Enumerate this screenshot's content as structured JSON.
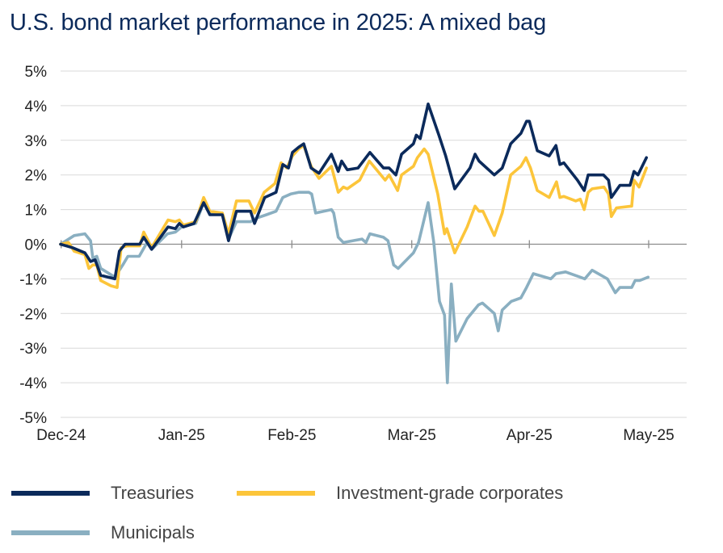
{
  "chart_data": {
    "type": "line",
    "title": "U.S. bond market performance in 2025: A mixed bag",
    "xlabel": "",
    "ylabel": "",
    "x_units": "approx. trading days since start of Dec-24",
    "xlim": [
      0,
      110
    ],
    "ylim": [
      -5,
      5
    ],
    "grid": true,
    "legend_position": "bottom",
    "x_ticks": [
      {
        "label": "Dec-24",
        "x": 0.1
      },
      {
        "label": "Jan-25",
        "x": 21.4
      },
      {
        "label": "Feb-25",
        "x": 40.9
      },
      {
        "label": "Mar-25",
        "x": 62.1
      },
      {
        "label": "Apr-25",
        "x": 82.9
      },
      {
        "label": "May-25",
        "x": 104
      }
    ],
    "y_ticks": [
      {
        "label": "5%",
        "y": 5
      },
      {
        "label": "4%",
        "y": 4
      },
      {
        "label": "3%",
        "y": 3
      },
      {
        "label": "2%",
        "y": 2
      },
      {
        "label": "1%",
        "y": 1
      },
      {
        "label": "0%",
        "y": 0
      },
      {
        "label": "-1%",
        "y": -1
      },
      {
        "label": "-2%",
        "y": -2
      },
      {
        "label": "-3%",
        "y": -3
      },
      {
        "label": "-4%",
        "y": -4
      },
      {
        "label": "-5%",
        "y": -5
      }
    ],
    "series": [
      {
        "name": "Treasuries",
        "color": "#0b2a5b",
        "points": [
          [
            0,
            0
          ],
          [
            2.1,
            -0.1
          ],
          [
            4.3,
            -0.25
          ],
          [
            5.3,
            -0.5
          ],
          [
            6.1,
            -0.45
          ],
          [
            7.1,
            -0.9
          ],
          [
            9.6,
            -1.0
          ],
          [
            10.4,
            -0.2
          ],
          [
            11.4,
            0
          ],
          [
            14,
            0
          ],
          [
            14.7,
            0.2
          ],
          [
            16.1,
            -0.15
          ],
          [
            19,
            0.5
          ],
          [
            20.3,
            0.45
          ],
          [
            21,
            0.6
          ],
          [
            21.7,
            0.5
          ],
          [
            23.6,
            0.6
          ],
          [
            25.3,
            1.2
          ],
          [
            26.4,
            0.85
          ],
          [
            28.6,
            0.85
          ],
          [
            29.7,
            0.1
          ],
          [
            31.1,
            0.95
          ],
          [
            33.6,
            0.95
          ],
          [
            34.3,
            0.6
          ],
          [
            36.1,
            1.35
          ],
          [
            38.1,
            1.5
          ],
          [
            39.3,
            2.3
          ],
          [
            40.3,
            2.2
          ],
          [
            41,
            2.65
          ],
          [
            42.1,
            2.8
          ],
          [
            43,
            2.9
          ],
          [
            44.3,
            2.2
          ],
          [
            45.7,
            2.05
          ],
          [
            47.9,
            2.6
          ],
          [
            49.1,
            2.1
          ],
          [
            49.7,
            2.4
          ],
          [
            50.7,
            2.15
          ],
          [
            52.6,
            2.2
          ],
          [
            54.7,
            2.65
          ],
          [
            57.1,
            2.2
          ],
          [
            58.1,
            2.2
          ],
          [
            59.3,
            2.0
          ],
          [
            60.3,
            2.6
          ],
          [
            62.4,
            2.9
          ],
          [
            62.9,
            3.15
          ],
          [
            63.6,
            3.05
          ],
          [
            65,
            4.05
          ],
          [
            66.9,
            3.15
          ],
          [
            68.1,
            2.55
          ],
          [
            69.7,
            1.6
          ],
          [
            72.4,
            2.2
          ],
          [
            73.3,
            2.6
          ],
          [
            74,
            2.4
          ],
          [
            76.7,
            2.0
          ],
          [
            78.1,
            2.2
          ],
          [
            79.6,
            2.9
          ],
          [
            81.4,
            3.2
          ],
          [
            82.4,
            3.55
          ],
          [
            82.9,
            3.55
          ],
          [
            84.3,
            2.7
          ],
          [
            86.4,
            2.55
          ],
          [
            87.6,
            2.85
          ],
          [
            88.3,
            2.3
          ],
          [
            89,
            2.35
          ],
          [
            91.4,
            1.85
          ],
          [
            92.6,
            1.55
          ],
          [
            93.3,
            2.0
          ],
          [
            96,
            2.0
          ],
          [
            96.9,
            1.85
          ],
          [
            97.4,
            1.35
          ],
          [
            98.9,
            1.7
          ],
          [
            100.7,
            1.7
          ],
          [
            101.4,
            2.1
          ],
          [
            102.1,
            2.0
          ],
          [
            103.6,
            2.5
          ]
        ]
      },
      {
        "name": "Investment-grade corporates",
        "color": "#fcc53a",
        "points": [
          [
            0,
            0
          ],
          [
            1.4,
            0.05
          ],
          [
            2.4,
            -0.2
          ],
          [
            4.3,
            -0.3
          ],
          [
            5,
            -0.7
          ],
          [
            5.7,
            -0.6
          ],
          [
            6.4,
            -0.6
          ],
          [
            7.1,
            -1.05
          ],
          [
            8.9,
            -1.2
          ],
          [
            10,
            -1.25
          ],
          [
            10.7,
            -0.1
          ],
          [
            11.7,
            -0.05
          ],
          [
            14,
            -0.05
          ],
          [
            14.7,
            0.35
          ],
          [
            16.1,
            -0.1
          ],
          [
            19,
            0.7
          ],
          [
            20.3,
            0.65
          ],
          [
            21,
            0.7
          ],
          [
            21.7,
            0.55
          ],
          [
            23.9,
            0.65
          ],
          [
            25.3,
            1.35
          ],
          [
            26.4,
            0.95
          ],
          [
            28.6,
            0.9
          ],
          [
            29.7,
            0.3
          ],
          [
            31.1,
            1.25
          ],
          [
            33.3,
            1.25
          ],
          [
            34.3,
            0.9
          ],
          [
            36,
            1.5
          ],
          [
            37.9,
            1.75
          ],
          [
            39,
            2.35
          ],
          [
            40,
            2.2
          ],
          [
            41,
            2.55
          ],
          [
            42.1,
            2.75
          ],
          [
            43,
            2.85
          ],
          [
            44.3,
            2.25
          ],
          [
            45.7,
            1.9
          ],
          [
            47.9,
            2.25
          ],
          [
            49.1,
            1.5
          ],
          [
            50,
            1.65
          ],
          [
            50.7,
            1.6
          ],
          [
            52.9,
            1.85
          ],
          [
            54.6,
            2.4
          ],
          [
            57.4,
            1.85
          ],
          [
            58.1,
            2.0
          ],
          [
            59.6,
            1.55
          ],
          [
            60.3,
            2.0
          ],
          [
            62.4,
            2.25
          ],
          [
            63.1,
            2.5
          ],
          [
            64.3,
            2.75
          ],
          [
            65,
            2.6
          ],
          [
            66.7,
            1.45
          ],
          [
            67.9,
            0.3
          ],
          [
            68.3,
            0.45
          ],
          [
            69.7,
            -0.25
          ],
          [
            71.9,
            0.5
          ],
          [
            73.3,
            1.1
          ],
          [
            74,
            0.95
          ],
          [
            74.7,
            0.95
          ],
          [
            76.7,
            0.25
          ],
          [
            78.1,
            0.9
          ],
          [
            79.6,
            2.0
          ],
          [
            81.4,
            2.25
          ],
          [
            82.3,
            2.5
          ],
          [
            83.1,
            2.2
          ],
          [
            84.3,
            1.55
          ],
          [
            86.4,
            1.35
          ],
          [
            87.7,
            1.8
          ],
          [
            88.3,
            1.35
          ],
          [
            89,
            1.38
          ],
          [
            91.1,
            1.25
          ],
          [
            91.9,
            1.3
          ],
          [
            92.6,
            1.0
          ],
          [
            93.3,
            1.5
          ],
          [
            94,
            1.6
          ],
          [
            96.1,
            1.65
          ],
          [
            96.9,
            1.45
          ],
          [
            97.4,
            0.8
          ],
          [
            98.3,
            1.05
          ],
          [
            101,
            1.1
          ],
          [
            101.4,
            1.85
          ],
          [
            102.3,
            1.65
          ],
          [
            103.6,
            2.2
          ]
        ]
      },
      {
        "name": "Municipals",
        "color": "#8aafc1",
        "points": [
          [
            0,
            0
          ],
          [
            2.4,
            0.25
          ],
          [
            4.3,
            0.3
          ],
          [
            5.3,
            0.1
          ],
          [
            5.7,
            -0.4
          ],
          [
            6.4,
            -0.35
          ],
          [
            7.1,
            -0.7
          ],
          [
            9.6,
            -0.95
          ],
          [
            11,
            -0.6
          ],
          [
            11.9,
            -0.35
          ],
          [
            13.9,
            -0.35
          ],
          [
            15.3,
            0.05
          ],
          [
            16.4,
            -0.1
          ],
          [
            18.9,
            0.3
          ],
          [
            20.3,
            0.35
          ],
          [
            21.4,
            0.5
          ],
          [
            23.9,
            0.6
          ],
          [
            25.3,
            1.2
          ],
          [
            26.4,
            0.9
          ],
          [
            28.6,
            0.9
          ],
          [
            29.7,
            0.15
          ],
          [
            31.1,
            0.65
          ],
          [
            33.6,
            0.65
          ],
          [
            34.6,
            0.75
          ],
          [
            36.4,
            0.85
          ],
          [
            38.1,
            0.95
          ],
          [
            39.3,
            1.35
          ],
          [
            40.7,
            1.45
          ],
          [
            42.1,
            1.5
          ],
          [
            43.9,
            1.5
          ],
          [
            44.4,
            1.45
          ],
          [
            45.1,
            0.9
          ],
          [
            47.9,
            1.0
          ],
          [
            48.3,
            0.9
          ],
          [
            49.1,
            0.2
          ],
          [
            50,
            0.05
          ],
          [
            53.3,
            0.15
          ],
          [
            54,
            0.05
          ],
          [
            54.7,
            0.3
          ],
          [
            57.1,
            0.2
          ],
          [
            57.9,
            0.1
          ],
          [
            58.9,
            -0.6
          ],
          [
            59.7,
            -0.7
          ],
          [
            62.4,
            -0.25
          ],
          [
            63.3,
            0.05
          ],
          [
            65,
            1.2
          ],
          [
            66,
            0.05
          ],
          [
            67,
            -1.65
          ],
          [
            67.9,
            -2.05
          ],
          [
            68.4,
            -4.0
          ],
          [
            69.1,
            -1.15
          ],
          [
            69.9,
            -2.8
          ],
          [
            71.9,
            -2.15
          ],
          [
            73.9,
            -1.75
          ],
          [
            74.6,
            -1.7
          ],
          [
            76.7,
            -2.0
          ],
          [
            77.4,
            -2.5
          ],
          [
            78.1,
            -1.9
          ],
          [
            79.7,
            -1.65
          ],
          [
            81.4,
            -1.55
          ],
          [
            82.4,
            -1.25
          ],
          [
            83.6,
            -0.85
          ],
          [
            86.7,
            -1.0
          ],
          [
            87.6,
            -0.85
          ],
          [
            89.3,
            -0.8
          ],
          [
            91.9,
            -0.95
          ],
          [
            92.7,
            -1.0
          ],
          [
            94,
            -0.75
          ],
          [
            96.7,
            -1.0
          ],
          [
            98.1,
            -1.4
          ],
          [
            98.9,
            -1.25
          ],
          [
            101,
            -1.25
          ],
          [
            101.6,
            -1.05
          ],
          [
            102.4,
            -1.05
          ],
          [
            103.9,
            -0.95
          ]
        ]
      }
    ]
  }
}
